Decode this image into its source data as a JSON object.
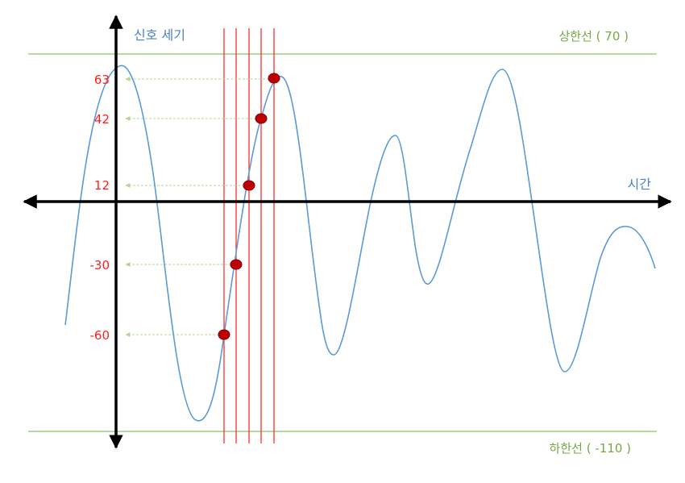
{
  "diagram": {
    "y_axis_label": "신호 세기",
    "x_axis_label": "시간",
    "upper_limit_label": "상한선 ( 70 )",
    "lower_limit_label": "하한선 ( -110 )",
    "sample_values": [
      "63",
      "42",
      "12",
      "-30",
      "-60"
    ],
    "colors": {
      "axis": "#000000",
      "signal": "#5b9bd5",
      "limit_lines": "#8cc063",
      "sample_lines": "#ff2020",
      "sample_points": "#c00000",
      "value_labels": "#ff1e1e",
      "arrows": "#b5d69a"
    }
  }
}
